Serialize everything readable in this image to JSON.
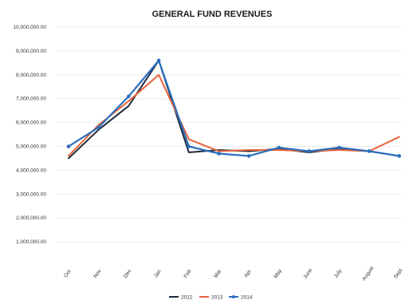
{
  "chart_data": {
    "type": "line",
    "title": "GENERAL FUND REVENUES",
    "xlabel": "",
    "ylabel": "",
    "categories": [
      "Oct",
      "Nov",
      "Dec",
      "Jan",
      "Feb",
      "Mar",
      "Apr",
      "May",
      "June",
      "July",
      "August",
      "Sept"
    ],
    "y_ticks": [
      "1,000,000.00",
      "2,000,000.00",
      "3,000,000.00",
      "4,000,000.00",
      "5,000,000.00",
      "6,000,000.00",
      "7,000,000.00",
      "8,000,000.00",
      "9,000,000.00",
      "10,000,000.00"
    ],
    "ylim": [
      0,
      10000000
    ],
    "grid": true,
    "legend_position": "bottom",
    "series": [
      {
        "name": "2012",
        "color": "#1f2b3d",
        "marker": false,
        "values": [
          4500000,
          5700000,
          6700000,
          8600000,
          4750000,
          4850000,
          4800000,
          4900000,
          4750000,
          4900000,
          4800000,
          4600000
        ]
      },
      {
        "name": "2013",
        "color": "#e8643c",
        "marker": false,
        "values": [
          4600000,
          5900000,
          6900000,
          8000000,
          5300000,
          4800000,
          4850000,
          4850000,
          4800000,
          4850000,
          4800000,
          5400000
        ]
      },
      {
        "name": "2014",
        "color": "#2a6ebc",
        "marker": true,
        "values": [
          5000000,
          5800000,
          7100000,
          8600000,
          5000000,
          4700000,
          4600000,
          4950000,
          4800000,
          4950000,
          4800000,
          4600000
        ]
      }
    ]
  }
}
